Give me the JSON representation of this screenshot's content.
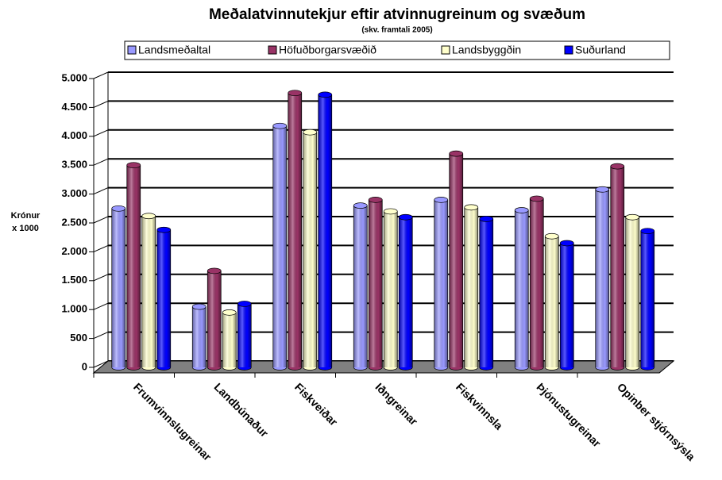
{
  "chart_data": {
    "type": "bar",
    "title": "Meðalatvinnutekjur eftir atvinnugreinum og svæðum",
    "subtitle": "(skv. framtali 2005)",
    "y_label": [
      "Krónur",
      "x 1000"
    ],
    "categories": [
      "Frumvinnslugreinar",
      "Landbúnaður",
      "Fiskveiðar",
      "Iðngreinar",
      "Fiskvinnsla",
      "Þjónustugreinar",
      "Opinber stjórnsýsla"
    ],
    "series": [
      {
        "name": "Landsmeðaltal",
        "color": "#9999ff",
        "values": [
          2750,
          1050,
          4180,
          2800,
          2900,
          2720,
          3080
        ]
      },
      {
        "name": "Höfuðborgarsvæðið",
        "color": "#993366",
        "values": [
          3500,
          1670,
          4750,
          2900,
          3700,
          2920,
          3480
        ]
      },
      {
        "name": "Landsbyggðin",
        "color": "#ffffcc",
        "values": [
          2620,
          950,
          4070,
          2700,
          2770,
          2270,
          2600
        ]
      },
      {
        "name": "Suðurland",
        "color": "#0000ff",
        "values": [
          2380,
          1100,
          4720,
          2600,
          2570,
          2150,
          2360
        ]
      }
    ],
    "ylim": [
      0,
      5000
    ],
    "yticks": [
      0,
      500,
      {
        "value": 1000,
        "label": "1.000"
      },
      {
        "value": 1500,
        "label": "1.500"
      },
      {
        "value": 2000,
        "label": "2.000"
      },
      {
        "value": 2500,
        "label": "2.500"
      },
      {
        "value": 3000,
        "label": "3.000"
      },
      {
        "value": 3500,
        "label": "3.500"
      },
      {
        "value": 4000,
        "label": "4.000"
      },
      {
        "value": 4500,
        "label": "4.500"
      },
      {
        "value": 5000,
        "label": "5.000"
      }
    ],
    "grid": true,
    "legend": "top"
  }
}
